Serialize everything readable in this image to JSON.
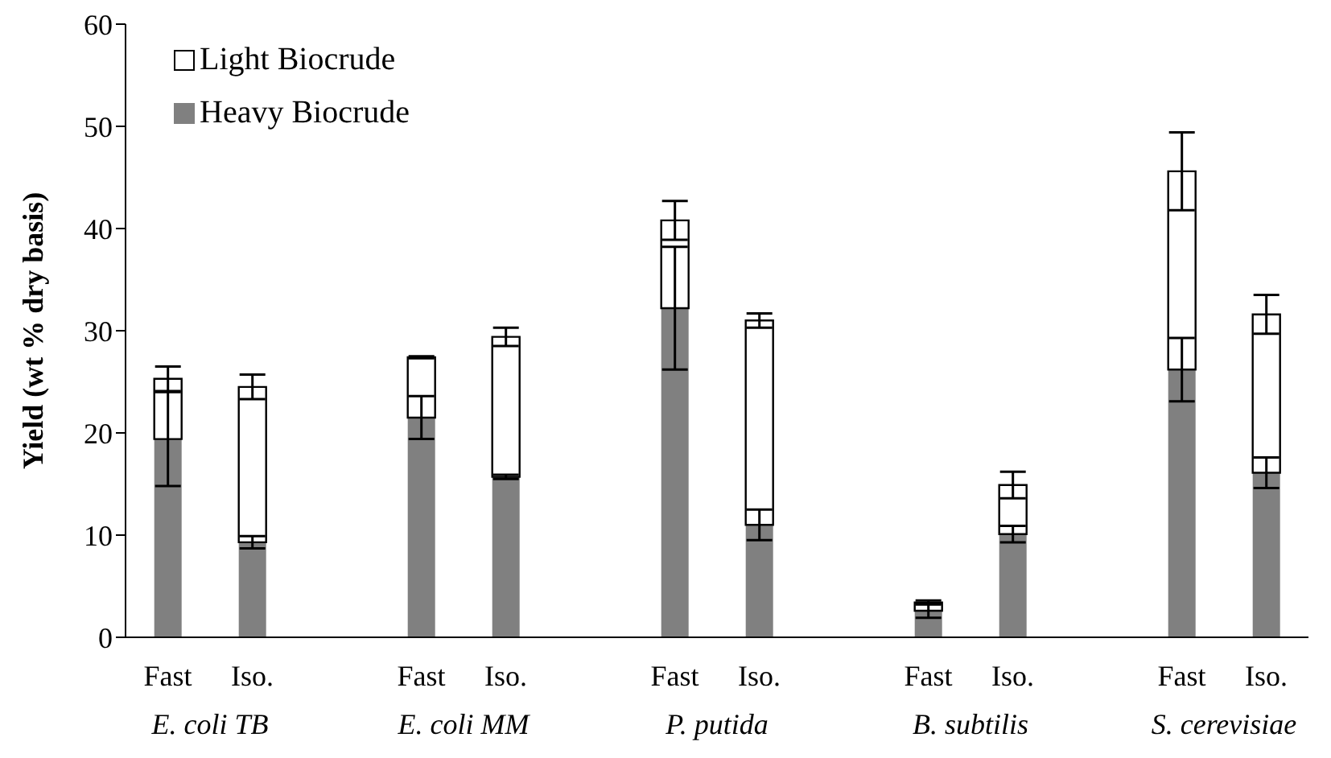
{
  "chart_data": {
    "type": "bar",
    "stacked": true,
    "ylabel": "Yield (wt % dry basis)",
    "categories": [
      "Fast",
      "Iso.",
      null,
      "Fast",
      "Iso.",
      null,
      "Fast",
      "Iso.",
      null,
      "Fast",
      "Iso.",
      null,
      "Fast",
      "Iso."
    ],
    "annotations": [
      "E. coli TB",
      "E. coli MM",
      "P. putida",
      "B. subtilis",
      "S. cerevisiae"
    ],
    "series": [
      {
        "name": "Heavy Biocrude",
        "color": "#808080",
        "values": [
          19.4,
          9.3,
          null,
          21.5,
          15.7,
          null,
          32.2,
          11.0,
          null,
          2.6,
          10.1,
          null,
          26.2,
          16.1
        ],
        "errors": [
          4.6,
          0.6,
          null,
          2.1,
          0.2,
          null,
          6.0,
          1.5,
          null,
          0.7,
          0.8,
          null,
          3.1,
          1.5
        ]
      },
      {
        "name": "Light Biocrude",
        "color": "#ffffff",
        "values": [
          5.9,
          15.2,
          null,
          5.9,
          13.7,
          null,
          8.6,
          20.0,
          null,
          0.8,
          4.8,
          null,
          19.4,
          15.5
        ],
        "errors": [
          1.2,
          1.2,
          null,
          0.1,
          0.9,
          null,
          1.9,
          0.7,
          null,
          0.2,
          1.3,
          null,
          3.8,
          1.9
        ]
      }
    ],
    "ylim": [
      0,
      60
    ],
    "yticks": [
      0,
      10,
      20,
      30,
      40,
      50,
      60
    ],
    "legend": "top left",
    "grid": false
  }
}
